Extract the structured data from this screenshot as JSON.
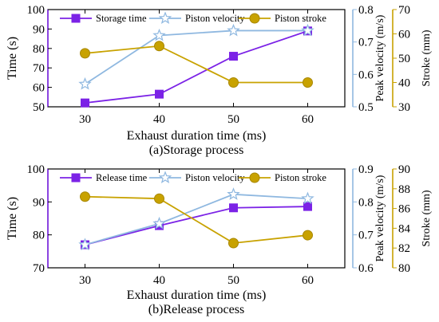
{
  "chart_data": [
    {
      "type": "line",
      "caption": "(a)Storage process",
      "xlabel": "Exhaust duration time (ms)",
      "x": [
        30,
        40,
        50,
        60
      ],
      "xlim": [
        25,
        65
      ],
      "ylabel_left": "Time (s)",
      "ylabel_right1": "Peak velocity (m/s)",
      "ylabel_right2": "Stroke (mm)",
      "ylim_left": [
        50,
        100
      ],
      "ylim_right1": [
        0.5,
        0.8
      ],
      "ylim_right2": [
        30,
        70
      ],
      "yticks_left": [
        "50",
        "60",
        "70",
        "80",
        "90",
        "100"
      ],
      "yticks_right1": [
        "0.5",
        "0.6",
        "0.7",
        "0.8"
      ],
      "yticks_right2": [
        "30",
        "40",
        "50",
        "60",
        "70"
      ],
      "xticks": [
        "30",
        "40",
        "50",
        "60"
      ],
      "legend_position": "top",
      "series": [
        {
          "name": "Storage time",
          "axis": "left",
          "color": "#7B22E6",
          "marker": "square",
          "values": [
            52,
            56.5,
            76,
            89
          ]
        },
        {
          "name": "Piston velocity",
          "axis": "right1",
          "color": "#8FB8E0",
          "marker": "star",
          "values": [
            0.57,
            0.72,
            0.735,
            0.735
          ]
        },
        {
          "name": "Piston stroke",
          "axis": "right2",
          "color": "#C8A200",
          "marker": "circle",
          "values": [
            52,
            55,
            40,
            40
          ]
        }
      ]
    },
    {
      "type": "line",
      "caption": "(b)Release process",
      "xlabel": "Exhaust duration time (ms)",
      "x": [
        30,
        40,
        50,
        60
      ],
      "xlim": [
        25,
        65
      ],
      "ylabel_left": "Time (s)",
      "ylabel_right1": "Peak velocity (m/s)",
      "ylabel_right2": "Stroke (mm)",
      "ylim_left": [
        70,
        100
      ],
      "ylim_right1": [
        0.6,
        0.9
      ],
      "ylim_right2": [
        80,
        90
      ],
      "yticks_left": [
        "70",
        "80",
        "90",
        "100"
      ],
      "yticks_right1": [
        "0.6",
        "0.7",
        "0.8",
        "0.9"
      ],
      "yticks_right2": [
        "80",
        "82",
        "84",
        "86",
        "88",
        "90"
      ],
      "xticks": [
        "30",
        "40",
        "50",
        "60"
      ],
      "legend_position": "top",
      "series": [
        {
          "name": "Release time",
          "axis": "left",
          "color": "#7B22E6",
          "marker": "square",
          "values": [
            77,
            82.8,
            88.2,
            88.6
          ]
        },
        {
          "name": "Piston velocity",
          "axis": "right1",
          "color": "#8FB8E0",
          "marker": "star",
          "values": [
            0.67,
            0.734,
            0.823,
            0.81
          ]
        },
        {
          "name": "Piston stroke",
          "axis": "right2",
          "color": "#C8A200",
          "marker": "circle",
          "values": [
            87.2,
            87,
            82.5,
            83.3
          ]
        }
      ]
    }
  ]
}
